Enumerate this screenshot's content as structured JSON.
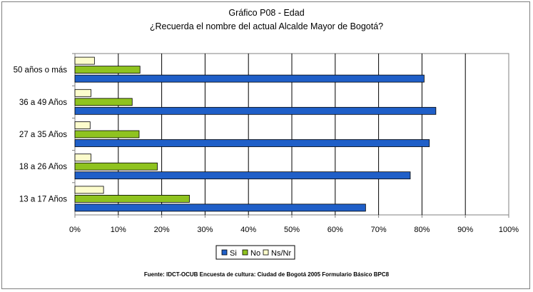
{
  "title": "Gráfico P08 - Edad",
  "subtitle": "¿Recuerda el nombre del actual Alcalde Mayor de Bogotá?",
  "source": "Fuente: IDCT-OCUB Encuesta de cultura: Ciudad de Bogotá 2005 Formulario Básico  BPC8",
  "colors": {
    "Si": "#1f5fc8",
    "No": "#8fc31f",
    "Ns/Nr": "#fcfccc"
  },
  "chart_data": {
    "type": "bar",
    "orientation": "horizontal",
    "categories": [
      "50 años o más",
      "36 a 49 Años",
      "27 a 35 Años",
      "18 a 26 Años",
      "13 a 17 Años"
    ],
    "series": [
      {
        "name": "Ns/Nr",
        "values": [
          4.5,
          3.7,
          3.5,
          3.7,
          6.6
        ]
      },
      {
        "name": "No",
        "values": [
          15.0,
          13.2,
          14.8,
          19.0,
          26.4
        ]
      },
      {
        "name": "Si",
        "values": [
          80.5,
          83.2,
          81.7,
          77.3,
          67.0
        ]
      }
    ],
    "legend_order": [
      "Si",
      "No",
      "Ns/Nr"
    ],
    "xlim": [
      0,
      100
    ],
    "xticks": [
      "0%",
      "10%",
      "20%",
      "30%",
      "40%",
      "50%",
      "60%",
      "70%",
      "80%",
      "90%",
      "100%"
    ],
    "grid": true,
    "legend_position": "bottom"
  }
}
